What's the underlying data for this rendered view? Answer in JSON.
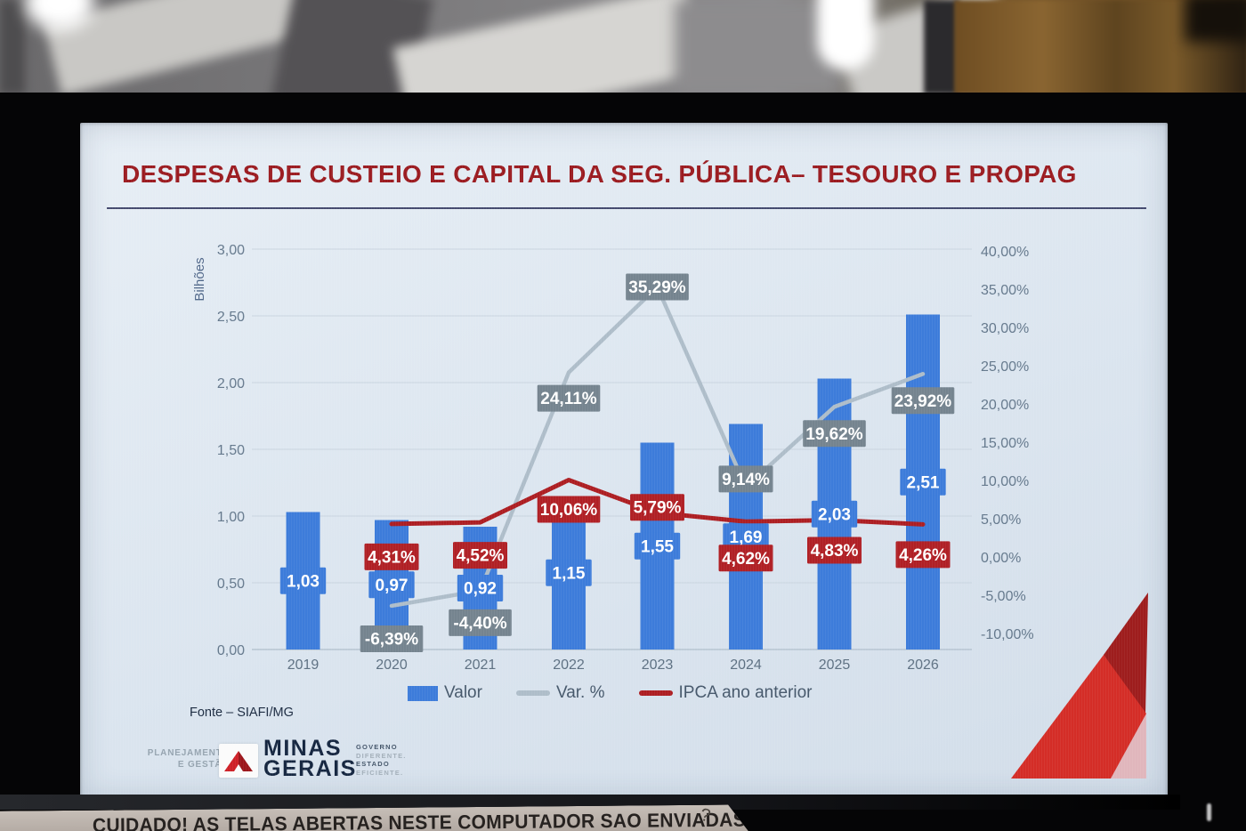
{
  "screen_slide": {
    "title": "DESPESAS DE CUSTEIO E CAPITAL DA SEG. PÚBLICA– TESOURO E PROPAG",
    "source_note": "Fonte – SIAFI/MG",
    "footer": {
      "agency_line1": "PLANEJAMENTO",
      "agency_line2": "E GESTÃO",
      "brand_line1": "MINAS",
      "brand_line2": "GERAIS",
      "motto_lines": [
        "GOVERNO",
        "DIFERENTE.",
        "ESTADO",
        "EFICIENTE."
      ]
    }
  },
  "chart_data": {
    "type": "combo_bar_line",
    "title": "DESPESAS DE CUSTEIO E CAPITAL DA SEG. PÚBLICA– TESOURO E PROPAG",
    "categories": [
      "2019",
      "2020",
      "2021",
      "2022",
      "2023",
      "2024",
      "2025",
      "2026"
    ],
    "series": [
      {
        "name": "Valor",
        "type": "bar",
        "axis": "left",
        "color": "#3d7cda",
        "label_bg": "#3d7cda",
        "values": [
          1.03,
          0.97,
          0.92,
          1.15,
          1.55,
          1.69,
          2.03,
          2.51
        ],
        "labels": [
          "1,03",
          "0,97",
          "0,92",
          "1,15",
          "1,55",
          "1,69",
          "2,03",
          "2,51"
        ]
      },
      {
        "name": "Var. %",
        "type": "line",
        "axis": "right",
        "color": "#aebdc9",
        "label_bg": "#75848f",
        "values": [
          null,
          -6.39,
          -4.4,
          24.11,
          35.29,
          9.14,
          19.62,
          23.92
        ],
        "labels": [
          null,
          "-6,39%",
          "-4,40%",
          "24,11%",
          "35,29%",
          "9,14%",
          "19,62%",
          "23,92%"
        ],
        "label_dy": [
          0,
          37,
          36,
          29,
          0,
          -9,
          30,
          30
        ]
      },
      {
        "name": "IPCA ano anterior",
        "type": "line",
        "axis": "right",
        "color": "#ad1e22",
        "label_bg": "#b02025",
        "values": [
          null,
          4.31,
          4.52,
          10.06,
          5.79,
          4.62,
          4.83,
          4.26
        ],
        "labels": [
          null,
          "4,31%",
          "4,52%",
          "10,06%",
          "5,79%",
          "4,62%",
          "4,83%",
          "4,26%"
        ],
        "label_dy": [
          0,
          37,
          37,
          33,
          -6,
          41,
          34,
          34
        ]
      }
    ],
    "left_axis": {
      "title": "Bilhões",
      "min": 0,
      "max": 3,
      "ticks": [
        "3,00",
        "2,50",
        "2,00",
        "1,50",
        "1,00",
        "0,50",
        "0,00"
      ]
    },
    "right_axis": {
      "min": -10,
      "max": 40,
      "ticks": [
        "40,00%",
        "35,00%",
        "30,00%",
        "25,00%",
        "20,00%",
        "15,00%",
        "10,00%",
        "5,00%",
        "0,00%",
        "-5,00%",
        "-10,00%"
      ]
    },
    "legend": [
      {
        "label": "Valor",
        "swatch": "bar",
        "color": "#3d7cda"
      },
      {
        "label": "Var. %",
        "swatch": "line",
        "color": "#aebdc9"
      },
      {
        "label": "IPCA ano anterior",
        "swatch": "line",
        "color": "#ad1e22"
      }
    ],
    "grid": true,
    "legend_position": "bottom"
  },
  "sticker": {
    "text": "CUIDADO! AS TELAS ABERTAS NESTE COMPUTADOR SAO ENVIADAS PARA TV ASSEMBLEIA",
    "handwritten_mark": "?"
  },
  "colors": {
    "title_red": "#9b1b20",
    "slide_bg": "#dbe5ef",
    "bar_blue": "#3d7cda",
    "var_line_gray": "#aebdc9",
    "var_label_bg": "#75848f",
    "ipca_line_red": "#ad1e22",
    "ipca_label_bg": "#b02025",
    "axis_text": "#64788c"
  }
}
